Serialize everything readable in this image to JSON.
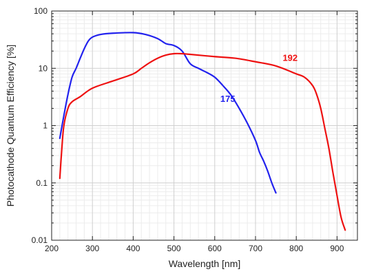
{
  "chart_data": {
    "type": "line",
    "xlabel": "Wavelength [nm]",
    "ylabel": "Photocathode Quantum Efficiency [%]",
    "xlim": [
      200,
      950
    ],
    "ylim": [
      0.01,
      100
    ],
    "yscale": "log",
    "x_ticks": [
      200,
      300,
      400,
      500,
      600,
      700,
      800,
      900
    ],
    "y_ticks": [
      0.01,
      0.1,
      1,
      10,
      100
    ],
    "y_tick_labels": [
      "0.01",
      "0.1",
      "1",
      "10",
      "100"
    ],
    "grid": true,
    "series": [
      {
        "name": "175",
        "color": "#2222ee",
        "x": [
          220,
          230,
          240,
          250,
          260,
          270,
          280,
          290,
          300,
          320,
          350,
          400,
          430,
          460,
          480,
          500,
          520,
          540,
          560,
          580,
          600,
          620,
          640,
          660,
          680,
          700,
          710,
          720,
          730,
          740,
          750
        ],
        "y": [
          0.6,
          1.5,
          3.5,
          7,
          10,
          15,
          22,
          30,
          35,
          39,
          41,
          42,
          39,
          33,
          27,
          25,
          20,
          12,
          10,
          8.5,
          7,
          5,
          3.4,
          2,
          1.1,
          0.55,
          0.34,
          0.24,
          0.16,
          0.1,
          0.067
        ]
      },
      {
        "name": "192",
        "color": "#ee1111",
        "x": [
          220,
          225,
          230,
          240,
          250,
          270,
          300,
          350,
          400,
          420,
          440,
          460,
          480,
          500,
          520,
          540,
          600,
          650,
          700,
          750,
          800,
          820,
          840,
          850,
          860,
          870,
          880,
          890,
          900,
          910,
          920
        ],
        "y": [
          0.12,
          0.4,
          1,
          2,
          2.6,
          3.2,
          4.5,
          6,
          8,
          10,
          12.5,
          15,
          17,
          18,
          18,
          17.5,
          16,
          15,
          13,
          11,
          8,
          7,
          5,
          3.5,
          2,
          0.9,
          0.4,
          0.15,
          0.06,
          0.025,
          0.015
        ]
      }
    ]
  }
}
